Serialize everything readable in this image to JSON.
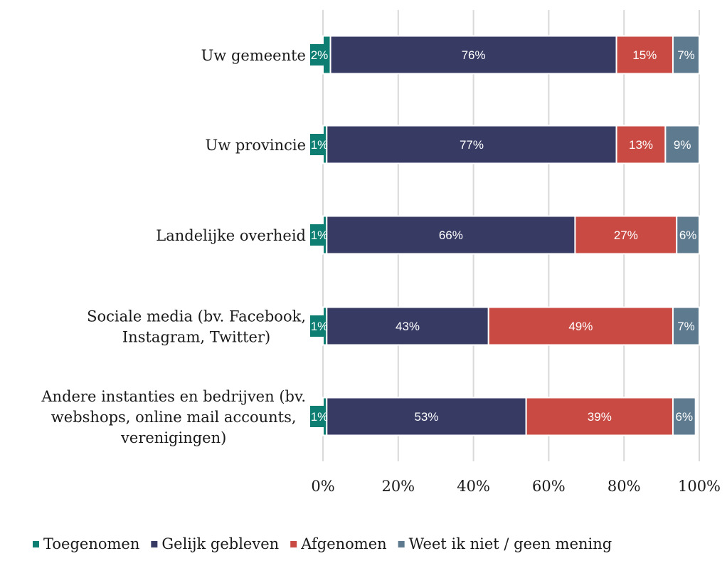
{
  "chart_data": {
    "type": "bar",
    "orientation": "horizontal",
    "stacked": true,
    "percent": true,
    "categories": [
      "Uw gemeente",
      "Uw provincie",
      "Landelijke overheid",
      "Sociale media (bv. Facebook, Instagram, Twitter)",
      "Andere instanties en bedrijven (bv. webshops, online mail accounts, verenigingen)"
    ],
    "category_lines": [
      [
        "Uw gemeente"
      ],
      [
        "Uw provincie"
      ],
      [
        "Landelijke overheid"
      ],
      [
        "Sociale media (bv. Facebook,",
        "Instagram, Twitter)"
      ],
      [
        "Andere instanties en bedrijven (bv.",
        "webshops, online mail accounts,",
        "verenigingen)"
      ]
    ],
    "series": [
      {
        "name": "Toegenomen",
        "values": [
          2,
          1,
          1,
          1,
          1
        ],
        "labels": [
          "2%",
          "1%",
          "1%",
          "1%",
          "1%"
        ],
        "color": "#0e7d72"
      },
      {
        "name": "Gelijk gebleven",
        "values": [
          76,
          77,
          66,
          43,
          53
        ],
        "labels": [
          "76%",
          "77%",
          "66%",
          "43%",
          "53%"
        ],
        "color": "#373b64"
      },
      {
        "name": "Afgenomen",
        "values": [
          15,
          13,
          27,
          49,
          39
        ],
        "labels": [
          "15%",
          "13%",
          "27%",
          "49%",
          "39%"
        ],
        "color": "#c94a43"
      },
      {
        "name": "Weet ik niet / geen mening",
        "values": [
          7,
          9,
          6,
          7,
          6
        ],
        "labels": [
          "7%",
          "9%",
          "6%",
          "7%",
          "6%"
        ],
        "color": "#5d7a8f"
      }
    ],
    "xlim": [
      0,
      100
    ],
    "xticks": [
      0,
      20,
      40,
      60,
      80,
      100
    ],
    "xtick_labels": [
      "0%",
      "20%",
      "40%",
      "60%",
      "80%",
      "100%"
    ],
    "grid": "vertical",
    "legend": "bottom",
    "title": "",
    "xlabel": "",
    "ylabel": ""
  }
}
